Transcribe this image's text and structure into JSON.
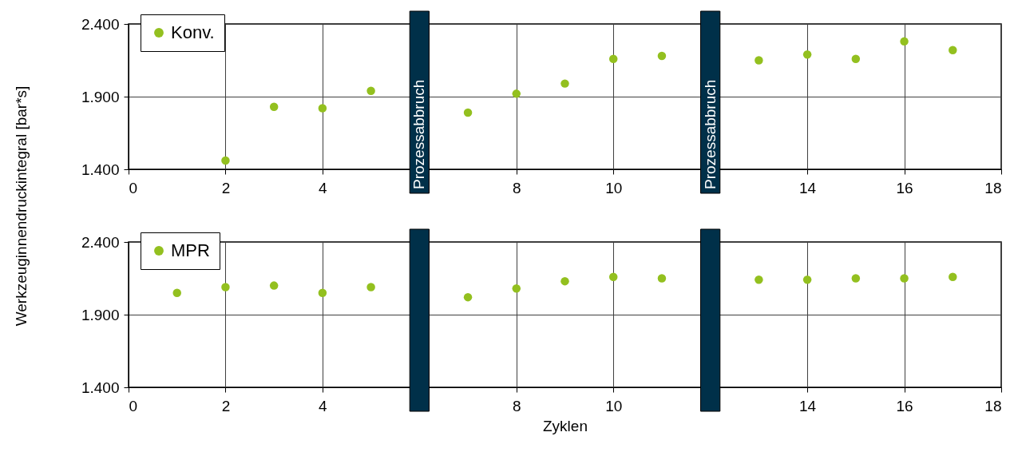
{
  "chart_data": [
    {
      "type": "scatter",
      "ylabel": "Werkzeuginnendruckintegral   [bar*s]",
      "x": [
        2,
        3,
        4,
        5,
        7,
        8,
        9,
        10,
        11,
        13,
        14,
        15,
        16,
        17
      ],
      "series": [
        {
          "name": "Konv.",
          "color": "#93c01f",
          "values": [
            1460,
            1830,
            1820,
            1940,
            1790,
            1920,
            1990,
            2160,
            2180,
            2150,
            2190,
            2160,
            2280,
            2220
          ]
        }
      ],
      "xlim": [
        0,
        18
      ],
      "xticks": [
        0,
        2,
        4,
        8,
        10,
        14,
        16,
        18
      ],
      "ylim": [
        1400,
        2400
      ],
      "yticks": [
        {
          "value": 1400,
          "label": "1.400"
        },
        {
          "value": 1900,
          "label": "1.900"
        },
        {
          "value": 2400,
          "label": "2.400"
        }
      ],
      "grid": true,
      "legend": "top left",
      "marker": "circle",
      "bands": [
        {
          "axis": "x",
          "from": 5.8,
          "to": 6.2,
          "label": "Prozessabbruch",
          "color": "#003049"
        },
        {
          "axis": "x",
          "from": 11.8,
          "to": 12.2,
          "label": "Prozessabbruch",
          "color": "#003049"
        }
      ]
    },
    {
      "type": "scatter",
      "xlabel": "Zyklen",
      "x": [
        1,
        2,
        3,
        4,
        5,
        7,
        8,
        9,
        10,
        11,
        13,
        14,
        15,
        16,
        17
      ],
      "series": [
        {
          "name": "MPR",
          "color": "#93c01f",
          "values": [
            2050,
            2090,
            2100,
            2050,
            2090,
            2020,
            2080,
            2130,
            2160,
            2150,
            2140,
            2140,
            2150,
            2150,
            2160
          ]
        }
      ],
      "xlim": [
        0,
        18
      ],
      "xticks": [
        0,
        2,
        4,
        8,
        10,
        14,
        16,
        18
      ],
      "ylim": [
        1400,
        2400
      ],
      "yticks": [
        {
          "value": 1400,
          "label": "1.400"
        },
        {
          "value": 1900,
          "label": "1.900"
        },
        {
          "value": 2400,
          "label": "2.400"
        }
      ],
      "grid": true,
      "legend": "top left",
      "marker": "circle",
      "bands": [
        {
          "axis": "x",
          "from": 5.8,
          "to": 6.2,
          "color": "#003049"
        },
        {
          "axis": "x",
          "from": 11.8,
          "to": 12.2,
          "color": "#003049"
        }
      ]
    }
  ]
}
